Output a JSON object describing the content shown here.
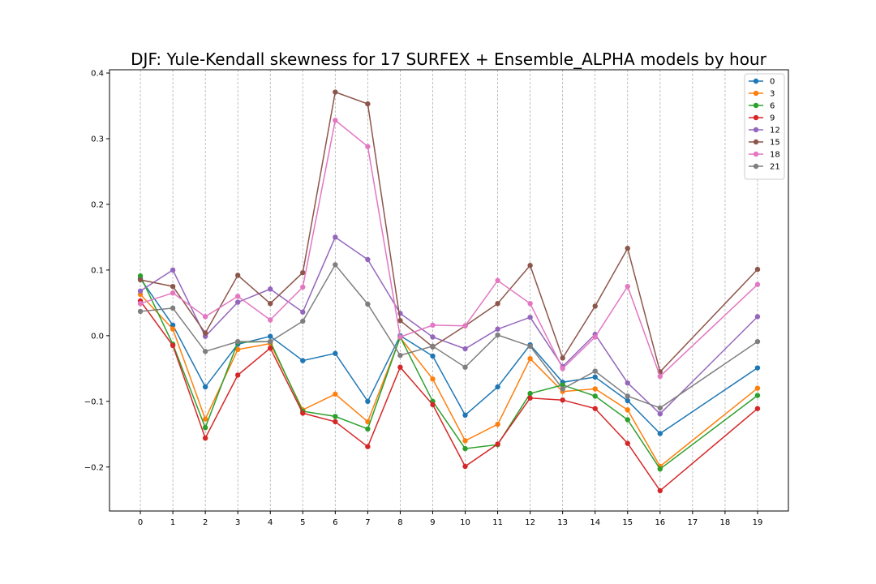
{
  "chart_data": {
    "type": "line",
    "title": "DJF: Yule-Kendall skewness for 17 SURFEX + Ensemble_ALPHA models by hour",
    "xlabel": "",
    "ylabel": "",
    "x": [
      0,
      1,
      2,
      3,
      4,
      5,
      6,
      7,
      8,
      9,
      10,
      11,
      12,
      13,
      14,
      15,
      16,
      19
    ],
    "xticks": [
      "0",
      "1",
      "2",
      "3",
      "4",
      "5",
      "6",
      "7",
      "8",
      "9",
      "10",
      "11",
      "12",
      "13",
      "14",
      "15",
      "16",
      "17",
      "18",
      "19"
    ],
    "yticks": [
      "−0.2",
      "−0.1",
      "0.0",
      "0.1",
      "0.2",
      "0.3",
      "0.4"
    ],
    "xlim": [
      -0.95,
      19.95
    ],
    "ylim": [
      -0.267,
      0.405
    ],
    "grid": "vertical dashed",
    "legend_position": "top-right",
    "series": [
      {
        "name": "0",
        "color": "#1f77b4",
        "values": [
          0.087,
          0.016,
          -0.078,
          -0.013,
          -0.001,
          -0.038,
          -0.027,
          -0.1,
          0.0,
          -0.031,
          -0.121,
          -0.078,
          -0.014,
          -0.071,
          -0.063,
          -0.099,
          -0.149,
          -0.049
        ]
      },
      {
        "name": "3",
        "color": "#ff7f0e",
        "values": [
          0.063,
          0.01,
          -0.127,
          -0.021,
          -0.012,
          -0.113,
          -0.089,
          -0.131,
          -0.003,
          -0.066,
          -0.16,
          -0.135,
          -0.035,
          -0.085,
          -0.081,
          -0.113,
          -0.199,
          -0.08
        ]
      },
      {
        "name": "6",
        "color": "#2ca02c",
        "values": [
          0.091,
          -0.013,
          -0.14,
          -0.01,
          -0.009,
          -0.115,
          -0.123,
          -0.142,
          -0.002,
          -0.1,
          -0.172,
          -0.166,
          -0.088,
          -0.075,
          -0.092,
          -0.128,
          -0.203,
          -0.091
        ]
      },
      {
        "name": "9",
        "color": "#d62728",
        "values": [
          0.053,
          -0.015,
          -0.156,
          -0.06,
          -0.019,
          -0.118,
          -0.131,
          -0.169,
          -0.048,
          -0.105,
          -0.199,
          -0.165,
          -0.095,
          -0.098,
          -0.111,
          -0.164,
          -0.236,
          -0.111
        ]
      },
      {
        "name": "12",
        "color": "#9467bd",
        "values": [
          0.068,
          0.1,
          -0.001,
          0.051,
          0.071,
          0.036,
          0.15,
          0.116,
          0.034,
          -0.002,
          -0.02,
          0.01,
          0.028,
          -0.047,
          0.002,
          -0.072,
          -0.119,
          0.029
        ]
      },
      {
        "name": "15",
        "color": "#8c564b",
        "values": [
          0.085,
          0.075,
          0.004,
          0.092,
          0.049,
          0.096,
          0.371,
          0.353,
          0.023,
          -0.017,
          0.015,
          0.049,
          0.107,
          -0.034,
          0.045,
          0.133,
          -0.055,
          0.101
        ]
      },
      {
        "name": "18",
        "color": "#e377c2",
        "values": [
          0.049,
          0.065,
          0.029,
          0.06,
          0.024,
          0.074,
          0.328,
          0.288,
          -0.002,
          0.016,
          0.015,
          0.084,
          0.049,
          -0.05,
          -0.002,
          0.075,
          -0.062,
          0.078
        ]
      },
      {
        "name": "21",
        "color": "#7f7f7f",
        "values": [
          0.037,
          0.042,
          -0.024,
          -0.009,
          -0.009,
          0.022,
          0.108,
          0.048,
          -0.03,
          -0.016,
          -0.048,
          0.001,
          -0.016,
          -0.081,
          -0.054,
          -0.092,
          -0.11,
          -0.009
        ]
      }
    ]
  }
}
